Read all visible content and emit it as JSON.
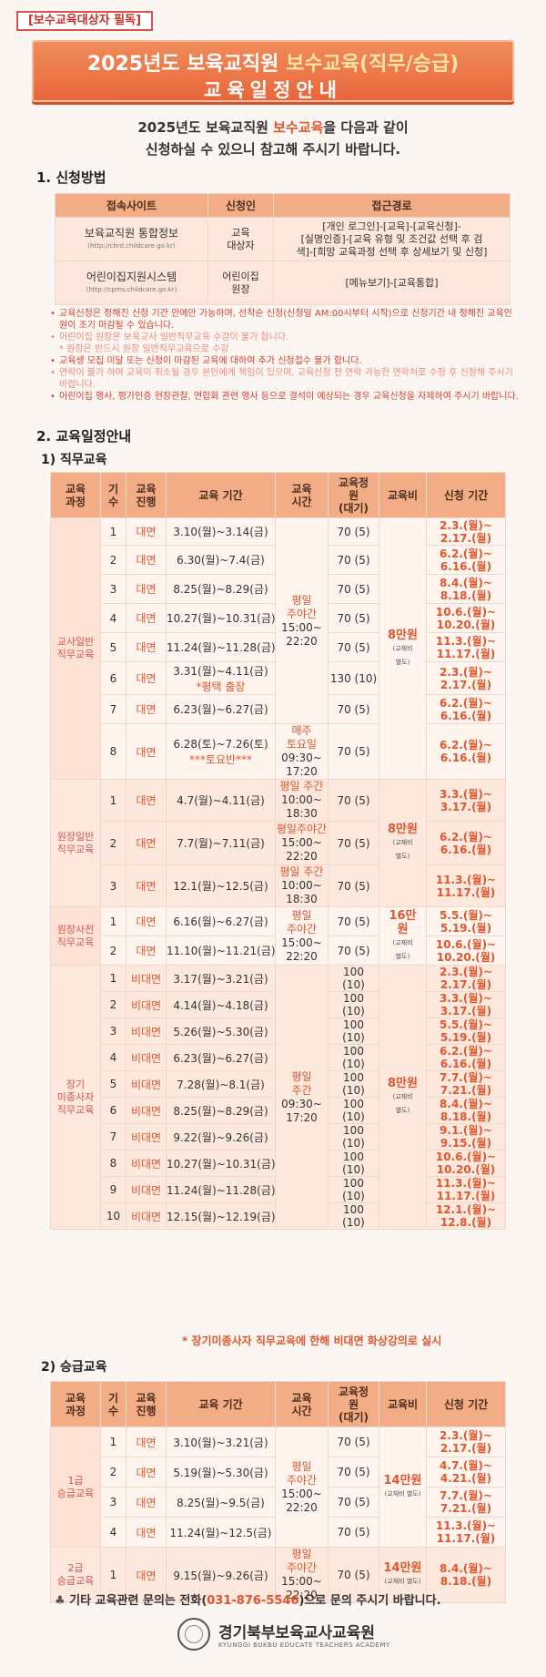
{
  "header": {
    "tag": "[보수교육대상자 필독]",
    "title_prefix": "2025년도 보육교직원 ",
    "title_highlight": "보수교육(직무/승급)",
    "subtitle": "교육일정안내"
  },
  "intro": {
    "line1_pre": "2025년도 보육교직원 ",
    "line1_hl": "보수교육",
    "line1_post": "을 다음과 같이",
    "line2": "신청하실 수 있으니 참고해 주시기 바랍니다."
  },
  "section1": {
    "title": "1. 신청방법"
  },
  "apply_table": {
    "headers": [
      "접속사이트",
      "신청인",
      "접근경로"
    ],
    "rows": [
      {
        "site": "보육교직원 통합정보",
        "url": "(http://chrd.childcare.go.kr)",
        "applicant": "교육\n대상자",
        "path": "[개인 로그인]-[교육]-[교육신청]-\n[실명인증]-[교육 유형 및 조건값 선택 후 검\n색]-[희망 교육과정 선택 후 상세보기 및 신청]"
      },
      {
        "site": "어린이집지원시스템",
        "url": "(http://cpms.childcare.go.kr)",
        "applicant": "어린이집\n원장",
        "path": "[메뉴보기]-[교육통합]"
      }
    ]
  },
  "notes": [
    {
      "style": "red",
      "text": "교육신청은 정해진 신청 기간 안에만 가능하며, 선착순 신청(신청일 AM:00시부터 시작)으로 신청기간 내 정해진 교육인원이 조기 마감될 수 있습니다."
    },
    {
      "style": "pink",
      "text": "어린이집 원장은 보육교사 일반직무교육 수강이 불가 합니다.\n* 원장은 반드시 원장 일반직무교육으로 수강"
    },
    {
      "style": "red",
      "text": "교육생 모집 미달 또는 신청이 마감된 교육에 대하여 추가 신청접수 불가 합니다."
    },
    {
      "style": "pink",
      "text": "연락이 불가 하여 교육이 취소될 경우 본인에게 책임이 있으며, 교육신청 전 연락 가능한 연락처로 수정 후 신청해 주시기 바랍니다."
    },
    {
      "style": "red",
      "text": "어린이집 행사, 평가인증 현장관찰, 연합회 관련 행사 등으로 결석이 예상되는 경우 교육신청을 자제하여 주시기 바랍니다."
    }
  ],
  "section2": {
    "title": "2. 교육일정안내",
    "sub1": "1) 직무교육",
    "sub2": "2) 승급교육"
  },
  "table_headers": [
    "교육\n과정",
    "기\n수",
    "교육\n진행",
    "교육 기간",
    "교육\n시간",
    "교육정\n원\n(대기)",
    "교육비",
    "신청 기간"
  ],
  "job_training": {
    "groups": [
      {
        "category": "교사일반\n직무교육",
        "fee": "8만원",
        "fee_note": "(교재비\n별도)",
        "rows": [
          {
            "seq": "1",
            "mode": "대면",
            "period": "3.10(월)~3.14(금)",
            "note": "",
            "cap": "70 (5)",
            "apply": "2.3.(월)~\n2.17.(월)"
          },
          {
            "seq": "2",
            "mode": "대면",
            "period": "6.30(월)~7.4(금)",
            "note": "",
            "cap": "70 (5)",
            "apply": "6.2.(월)~\n6.16.(월)"
          },
          {
            "seq": "3",
            "mode": "대면",
            "period": "8.25(월)~8.29(금)",
            "note": "",
            "cap": "70 (5)",
            "apply": "8.4.(월)~\n8.18.(월)"
          },
          {
            "seq": "4",
            "mode": "대면",
            "period": "10.27(월)~10.31(금)",
            "note": "",
            "cap": "70 (5)",
            "apply": "10.6.(월)~\n10.20.(월)"
          },
          {
            "seq": "5",
            "mode": "대면",
            "period": "11.24(월)~11.28(금)",
            "note": "",
            "cap": "70 (5)",
            "apply": "11.3.(월)~\n11.17.(월)"
          },
          {
            "seq": "6",
            "mode": "대면",
            "period": "3.31(월)~4.11(금)",
            "note": "*평택 출장",
            "cap": "130 (10)",
            "apply": "2.3.(월)~\n2.17.(월)"
          },
          {
            "seq": "7",
            "mode": "대면",
            "period": "6.23(월)~6.27(금)",
            "note": "",
            "cap": "70 (5)",
            "apply": "6.2.(월)~\n6.16.(월)"
          },
          {
            "seq": "8",
            "mode": "대면",
            "period": "6.28(토)~7.26(토)",
            "note": "***토요반***",
            "cap": "70 (5)",
            "apply": "6.2.(월)~\n6.16.(월)"
          }
        ],
        "time_a": "평일\n주야간",
        "time_a_hours": "15:00~\n22:20",
        "time_b": "매주\n토요일",
        "time_b_hours": "09:30~\n17:20"
      },
      {
        "category": "원장일반\n직무교육",
        "fee": "8만원",
        "fee_note": "(교재비\n별도)",
        "rows": [
          {
            "seq": "1",
            "mode": "대면",
            "period": "4.7(월)~4.11(금)",
            "time": "평일 주간",
            "hours": "10:00~\n18:30",
            "cap": "70 (5)",
            "apply": "3.3.(월)~\n3.17.(월)"
          },
          {
            "seq": "2",
            "mode": "대면",
            "period": "7.7(월)~7.11(금)",
            "time": "평일주야간",
            "hours": "15:00~\n22:20",
            "cap": "70 (5)",
            "apply": "6.2.(월)~\n6.16.(월)"
          },
          {
            "seq": "3",
            "mode": "대면",
            "period": "12.1(월)~12.5(금)",
            "time": "평일 주간",
            "hours": "10:00~\n18:30",
            "cap": "70 (5)",
            "apply": "11.3.(월)~\n11.17.(월)"
          }
        ]
      },
      {
        "category": "원장사전\n직무교육",
        "fee": "16만\n원",
        "fee_note": "(교재비\n별도)",
        "time": "평일\n주야간",
        "hours": "15:00~\n22:20",
        "rows": [
          {
            "seq": "1",
            "mode": "대면",
            "period": "6.16(월)~6.27(금)",
            "cap": "70 (5)",
            "apply": "5.5.(월)~\n5.19.(월)"
          },
          {
            "seq": "2",
            "mode": "대면",
            "period": "11.10(월)~11.21(금)",
            "cap": "70 (5)",
            "apply": "10.6.(월)~\n10.20.(월)"
          }
        ]
      },
      {
        "category": "장기\n미종사자\n직무교육",
        "fee": "8만원",
        "fee_note": "(교재비\n별도)",
        "time": "평일\n주간",
        "hours": "09:30~\n17:20",
        "rows": [
          {
            "seq": "1",
            "mode": "비대면",
            "period": "3.17(월)~3.21(금)",
            "cap": "100\n(10)",
            "apply": "2.3.(월)~\n2.17.(월)"
          },
          {
            "seq": "2",
            "mode": "비대면",
            "period": "4.14(월)~4.18(금)",
            "cap": "100\n(10)",
            "apply": "3.3.(월)~\n3.17.(월)"
          },
          {
            "seq": "3",
            "mode": "비대면",
            "period": "5.26(월)~5.30(금)",
            "cap": "100\n(10)",
            "apply": "5.5.(월)~\n5.19.(월)"
          },
          {
            "seq": "4",
            "mode": "비대면",
            "period": "6.23(월)~6.27(금)",
            "cap": "100\n(10)",
            "apply": "6.2.(월)~\n6.16.(월)"
          },
          {
            "seq": "5",
            "mode": "비대면",
            "period": "7.28(월)~8.1(금)",
            "cap": "100\n(10)",
            "apply": "7.7.(월)~\n7.21.(월)"
          },
          {
            "seq": "6",
            "mode": "비대면",
            "period": "8.25(월)~8.29(금)",
            "cap": "100\n(10)",
            "apply": "8.4.(월)~\n8.18.(월)"
          },
          {
            "seq": "7",
            "mode": "비대면",
            "period": "9.22(월)~9.26(금)",
            "cap": "100\n(10)",
            "apply": "9.1.(월)~\n9.15.(월)"
          },
          {
            "seq": "8",
            "mode": "비대면",
            "period": "10.27(월)~10.31(금)",
            "cap": "100\n(10)",
            "apply": "10.6.(월)~\n10.20.(월)"
          },
          {
            "seq": "9",
            "mode": "비대면",
            "period": "11.24(월)~11.28(금)",
            "cap": "100\n(10)",
            "apply": "11.3.(월)~\n11.17.(월)"
          },
          {
            "seq": "10",
            "mode": "비대면",
            "period": "12.15(월)~12.19(금)",
            "cap": "100\n(10)",
            "apply": "12.1.(월)~\n12.8.(월)"
          }
        ]
      }
    ],
    "remote_note": "* 장기미종사자 직무교육에 한해 비대면 화상강의로 실시"
  },
  "promotion_training": {
    "groups": [
      {
        "category": "1급\n승급교육",
        "fee": "14만원",
        "fee_note": "(교재비 별도)",
        "time": "평일\n주야간",
        "hours": "15:00~\n22:20",
        "rows": [
          {
            "seq": "1",
            "mode": "대면",
            "period": "3.10(월)~3.21(금)",
            "cap": "70 (5)",
            "apply": "2.3.(월)~\n2.17.(월)"
          },
          {
            "seq": "2",
            "mode": "대면",
            "period": "5.19(월)~5.30(금)",
            "cap": "70 (5)",
            "apply": "4.7.(월)~\n4.21.(월)"
          },
          {
            "seq": "3",
            "mode": "대면",
            "period": "8.25(월)~9.5(금)",
            "cap": "70 (5)",
            "apply": "7.7.(월)~\n7.21.(월)"
          },
          {
            "seq": "4",
            "mode": "대면",
            "period": "11.24(월)~12.5(금)",
            "cap": "70 (5)",
            "apply": "11.3.(월)~\n11.17.(월)"
          }
        ]
      },
      {
        "category": "2급\n승급교육",
        "fee": "14만원",
        "fee_note": "(교재비 별도)",
        "time": "평일\n주야간",
        "hours": "15:00~\n22:20",
        "rows": [
          {
            "seq": "1",
            "mode": "대면",
            "period": "9.15(월)~9.26(금)",
            "cap": "70 (5)",
            "apply": "8.4.(월)~\n8.18.(월)"
          }
        ]
      }
    ]
  },
  "contact": {
    "club_icon": "club-icon",
    "pre": " 기타 교육관련 문의는 전화(",
    "phone": "031-876-5546",
    "post": ")으로 문의 주시기 바랍니다."
  },
  "footer": {
    "name": "경기북부보육교사교육원",
    "eng": "KYUNGGI BUKBU EDUCATE TEACHERS ACADEMY"
  }
}
